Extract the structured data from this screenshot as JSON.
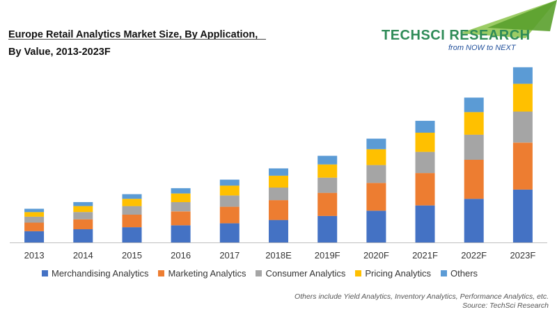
{
  "header": {
    "title_line1": "Europe Retail Analytics Market Size, By Application,",
    "title_line2": "By Value, 2013-2023F"
  },
  "logo": {
    "name": "TECHSCI RESEARCH",
    "tagline": "from NOW to NEXT"
  },
  "chart_data": {
    "type": "bar",
    "stacked": true,
    "categories": [
      "2013",
      "2014",
      "2015",
      "2016",
      "2017",
      "2018E",
      "2019F",
      "2020F",
      "2021F",
      "2022F",
      "2023F"
    ],
    "series": [
      {
        "name": "Merchandising Analytics",
        "color": "#4472c4",
        "values": [
          17,
          20,
          23,
          26,
          29,
          34,
          40,
          48,
          56,
          66,
          80
        ]
      },
      {
        "name": "Marketing Analytics",
        "color": "#ed7d31",
        "values": [
          13,
          15,
          19,
          21,
          25,
          30,
          35,
          42,
          49,
          59,
          71
        ]
      },
      {
        "name": "Consumer Analytics",
        "color": "#a5a5a5",
        "values": [
          9,
          11,
          13,
          14,
          17,
          19,
          23,
          27,
          32,
          38,
          47
        ]
      },
      {
        "name": "Pricing Analytics",
        "color": "#ffc000",
        "values": [
          7,
          9,
          11,
          13,
          15,
          18,
          20,
          24,
          29,
          34,
          42
        ]
      },
      {
        "name": "Others",
        "color": "#5b9bd5",
        "values": [
          5,
          6,
          7,
          8,
          9,
          11,
          13,
          16,
          18,
          22,
          25
        ]
      }
    ],
    "ylim": [
      0,
      270
    ],
    "grid": false,
    "legend_position": "bottom"
  },
  "footnote": {
    "line1": "Others include Yield Analytics, Inventory Analytics, Performance Analytics, etc.",
    "line2": "Source: TechSci Research"
  }
}
